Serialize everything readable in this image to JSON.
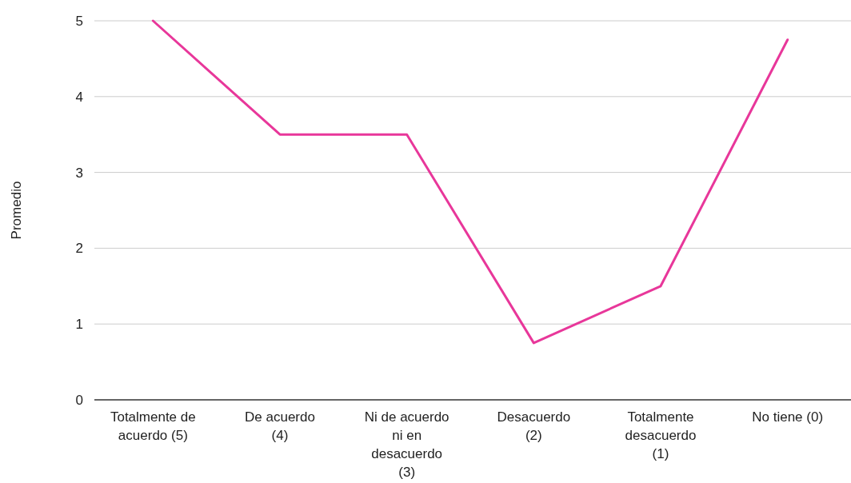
{
  "chart_data": {
    "type": "line",
    "ylabel": "Promedio",
    "categories": [
      "Totalmente de acuerdo (5)",
      "De acuerdo (4)",
      "Ni de acuerdo ni en desacuerdo (3)",
      "Desacuerdo (2)",
      "Totalmente desacuerdo (1)",
      "No tiene (0)"
    ],
    "series": [
      {
        "color": "#e8379a",
        "values": [
          5,
          3.5,
          3.5,
          0.75,
          1.5,
          4.75
        ]
      }
    ],
    "ylim": [
      0,
      5
    ],
    "yticks": [
      0,
      1,
      2,
      3,
      4,
      5
    ],
    "grid": "y",
    "marker": "none",
    "line_style": "solid"
  }
}
